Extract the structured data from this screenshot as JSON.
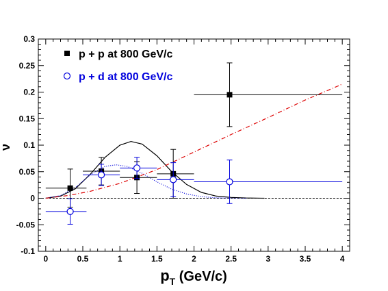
{
  "chart_data": {
    "type": "scatter",
    "xlabel": {
      "main": "p",
      "sub": "T",
      "rest": " (GeV/c)"
    },
    "ylabel": "ν",
    "xlim": [
      -0.1,
      4.1
    ],
    "ylim": [
      -0.1,
      0.3
    ],
    "xticks": [
      "0",
      "0.5",
      "1",
      "1.5",
      "2",
      "2.5",
      "3",
      "3.5",
      "4"
    ],
    "yticks": [
      "-0.1",
      "-0.05",
      "0",
      "0.05",
      "0.1",
      "0.15",
      "0.2",
      "0.25",
      "0.3"
    ],
    "legend_position": "top-left",
    "series": [
      {
        "name": "p + p at 800 GeV/c",
        "color": "#000000",
        "marker": "filled-square",
        "points": [
          {
            "x": 0.33,
            "y": 0.019,
            "xerr": [
              0.0,
              0.55
            ],
            "yerr": 0.036
          },
          {
            "x": 0.75,
            "y": 0.051,
            "xerr": [
              0.5,
              1.0
            ],
            "yerr": 0.026
          },
          {
            "x": 1.23,
            "y": 0.039,
            "xerr": [
              1.0,
              1.5
            ],
            "yerr": 0.03
          },
          {
            "x": 1.72,
            "y": 0.046,
            "xerr": [
              1.5,
              2.0
            ],
            "yerr": 0.046
          },
          {
            "x": 2.48,
            "y": 0.195,
            "xerr": [
              2.0,
              4.0
            ],
            "yerr": 0.06
          }
        ]
      },
      {
        "name": "p + d at 800 GeV/c",
        "color": "#0000dd",
        "marker": "open-circle",
        "points": [
          {
            "x": 0.33,
            "y": -0.025,
            "xerr": [
              0.0,
              0.55
            ],
            "yerr": 0.024
          },
          {
            "x": 0.75,
            "y": 0.044,
            "xerr": [
              0.5,
              1.0
            ],
            "yerr": 0.02
          },
          {
            "x": 1.23,
            "y": 0.057,
            "xerr": [
              1.0,
              1.5
            ],
            "yerr": 0.02
          },
          {
            "x": 1.72,
            "y": 0.035,
            "xerr": [
              1.5,
              2.0
            ],
            "yerr": 0.032
          },
          {
            "x": 2.48,
            "y": 0.031,
            "xerr": [
              2.0,
              4.0
            ],
            "yerr": 0.041
          }
        ]
      }
    ],
    "curves": [
      {
        "style": "solid",
        "color": "#000000",
        "x": [
          0,
          0.2,
          0.4,
          0.6,
          0.8,
          1.0,
          1.15,
          1.3,
          1.5,
          1.7,
          1.9,
          2.1,
          2.3,
          2.5,
          2.7,
          2.95
        ],
        "y": [
          0,
          0.004,
          0.018,
          0.045,
          0.077,
          0.1,
          0.107,
          0.102,
          0.08,
          0.05,
          0.026,
          0.011,
          0.004,
          0.0015,
          0.0005,
          0.0
        ]
      },
      {
        "style": "dotted",
        "color": "#0000dd",
        "x": [
          0,
          0.2,
          0.4,
          0.6,
          0.8,
          0.95,
          1.1,
          1.3,
          1.5,
          1.7,
          1.9,
          2.1,
          2.3,
          2.5,
          2.7
        ],
        "y": [
          0,
          0.005,
          0.02,
          0.044,
          0.06,
          0.063,
          0.06,
          0.047,
          0.031,
          0.017,
          0.008,
          0.003,
          0.0008,
          0.0002,
          0.0
        ]
      },
      {
        "style": "dashdot",
        "color": "#dd0000",
        "x": [
          0,
          0.3,
          0.6,
          1.0,
          1.5,
          2.0,
          2.5,
          3.0,
          3.5,
          4.0
        ],
        "y": [
          0,
          0.005,
          0.013,
          0.028,
          0.054,
          0.087,
          0.12,
          0.152,
          0.185,
          0.215
        ]
      }
    ],
    "reference_line": {
      "y": 0,
      "style": "dashed",
      "color": "#000000"
    }
  }
}
